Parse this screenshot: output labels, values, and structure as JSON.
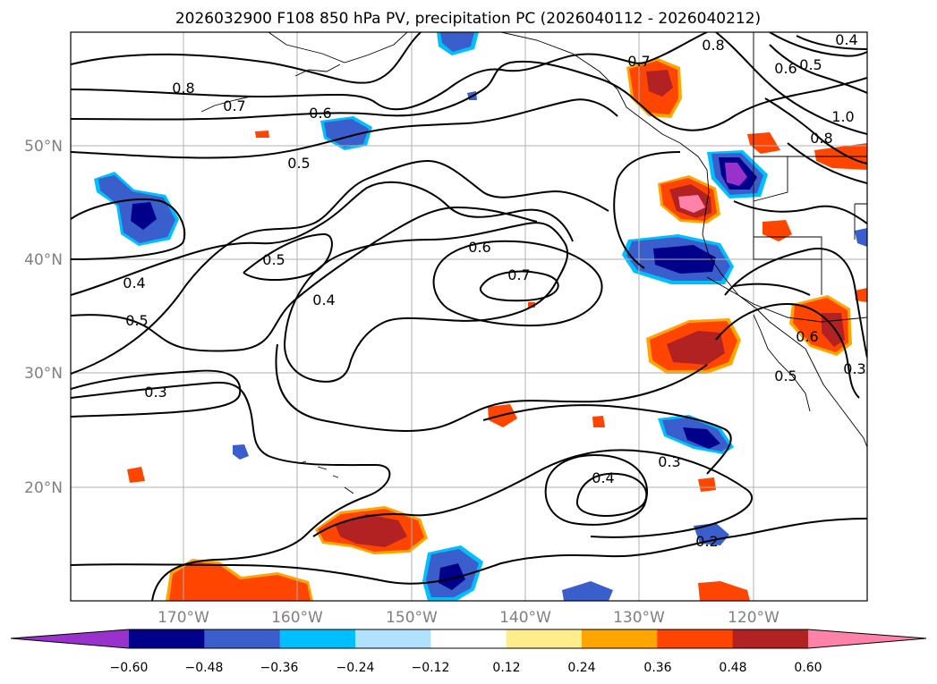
{
  "title": "2026032900 F108 850 hPa PV, precipitation PC (2026040112 - 2026040212)",
  "lat_labels": [
    "50°N",
    "40°N",
    "30°N",
    "20°N"
  ],
  "lon_labels": [
    "170°W",
    "160°W",
    "150°W",
    "140°W",
    "130°W",
    "120°W"
  ],
  "colorbar": {
    "ticks": [
      "−0.60",
      "−0.48",
      "−0.36",
      "−0.24",
      "−0.12",
      "0.12",
      "0.24",
      "0.36",
      "0.48",
      "0.60"
    ],
    "colors": [
      "#9932cc",
      "#00008b",
      "#3a5fcd",
      "#00bfff",
      "#b0e2ff",
      "#ffffff",
      "#ffec8b",
      "#ffa500",
      "#ff4500",
      "#b22222",
      "#ff82ab"
    ]
  },
  "contour_labels": [
    "0.8",
    "0.7",
    "0.6",
    "0.5",
    "0.5",
    "0.4",
    "0.5",
    "0.3",
    "0.4",
    "0.6",
    "0.7",
    "0.7",
    "0.8",
    "0.6",
    "0.5",
    "0.4",
    "1.0",
    "0.8",
    "0.3",
    "0.4",
    "0.2",
    "0.6",
    "0.5",
    "0.3"
  ]
}
